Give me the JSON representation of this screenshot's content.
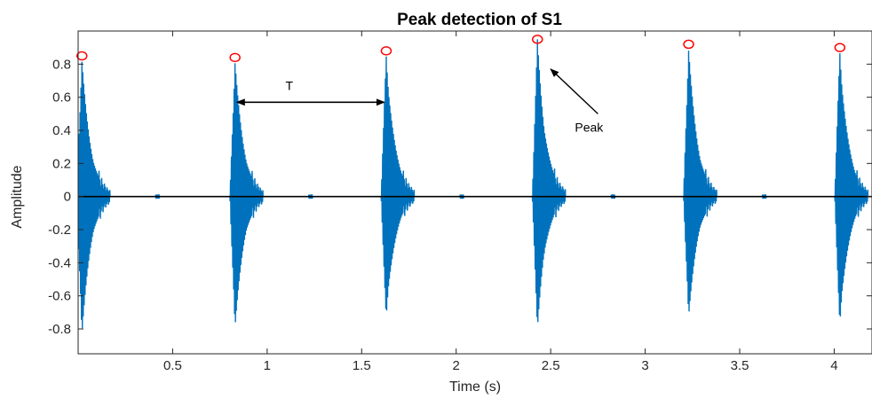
{
  "chart_data": {
    "type": "line",
    "title": "Peak  detection of S1",
    "xlabel": "Time (s)",
    "ylabel": "Amplitude",
    "xlim": [
      0.0,
      4.2
    ],
    "ylim": [
      -0.95,
      1.0
    ],
    "xticks": [
      0.5,
      1,
      1.5,
      2,
      2.5,
      3,
      3.5,
      4
    ],
    "yticks": [
      -0.8,
      -0.6,
      -0.4,
      -0.2,
      0,
      0.2,
      0.4,
      0.6,
      0.8
    ],
    "xtick_labels": [
      "0.5",
      "1",
      "1.5",
      "2",
      "2.5",
      "3",
      "3.5",
      "4"
    ],
    "ytick_labels": [
      "-0.8",
      "-0.6",
      "-0.4",
      "-0.2",
      "0",
      "0.2",
      "0.4",
      "0.6",
      "0.8"
    ],
    "grid": false,
    "series": [
      {
        "kind": "signal",
        "color": "#0072BD",
        "bursts": [
          {
            "t": 0.02,
            "peak": 0.85,
            "trough": -0.86
          },
          {
            "t": 0.83,
            "peak": 0.84,
            "trough": -0.82
          },
          {
            "t": 1.63,
            "peak": 0.88,
            "trough": -0.76
          },
          {
            "t": 2.43,
            "peak": 0.95,
            "trough": -0.8
          },
          {
            "t": 3.23,
            "peak": 0.92,
            "trough": -0.75
          },
          {
            "t": 4.03,
            "peak": 0.9,
            "trough": -0.8
          }
        ]
      },
      {
        "kind": "peaks",
        "color": "#FF0000",
        "x": [
          0.02,
          0.83,
          1.63,
          2.43,
          3.23,
          4.03
        ],
        "y": [
          0.85,
          0.84,
          0.88,
          0.95,
          0.92,
          0.9
        ]
      }
    ],
    "baseline_color": "#000000",
    "annotations": [
      {
        "type": "double-arrow",
        "label": "T",
        "x1": 0.84,
        "x2": 1.62,
        "y": 0.57
      },
      {
        "type": "arrow",
        "label": "Peak",
        "from": [
          2.75,
          0.5
        ],
        "to": [
          2.5,
          0.77
        ]
      }
    ]
  }
}
